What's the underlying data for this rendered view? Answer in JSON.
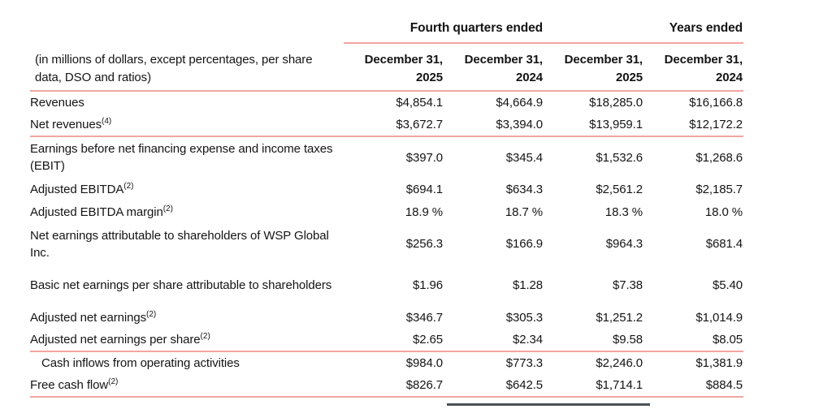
{
  "table": {
    "col_groups": [
      {
        "label": "Fourth quarters ended"
      },
      {
        "label": "Years ended"
      }
    ],
    "corner_note": "(in millions of dollars, except percentages, per share data, DSO and ratios)",
    "columns": [
      {
        "line1": "December 31,",
        "line2": "2025"
      },
      {
        "line1": "December 31,",
        "line2": "2024"
      },
      {
        "line1": "December 31,",
        "line2": "2025"
      },
      {
        "line1": "December 31,",
        "line2": "2024"
      }
    ],
    "rows": [
      {
        "label": "Revenues",
        "sup": "",
        "tall": false,
        "indent": false,
        "rule_below": false,
        "values": [
          "$4,854.1",
          "$4,664.9",
          "$18,285.0",
          "$16,166.8"
        ]
      },
      {
        "label": "Net revenues",
        "sup": "(4)",
        "tall": false,
        "indent": false,
        "rule_below": true,
        "values": [
          "$3,672.7",
          "$3,394.0",
          "$13,959.1",
          "$12,172.2"
        ]
      },
      {
        "label": "Earnings before net financing expense and income taxes (EBIT)",
        "sup": "",
        "tall": true,
        "indent": false,
        "rule_below": false,
        "values": [
          "$397.0",
          "$345.4",
          "$1,532.6",
          "$1,268.6"
        ]
      },
      {
        "label": "Adjusted EBITDA",
        "sup": "(2)",
        "tall": false,
        "indent": false,
        "rule_below": false,
        "values": [
          "$694.1",
          "$634.3",
          "$2,561.2",
          "$2,185.7"
        ]
      },
      {
        "label": "Adjusted EBITDA margin",
        "sup": "(2)",
        "tall": false,
        "indent": false,
        "rule_below": false,
        "values": [
          "18.9 %",
          "18.7 %",
          "18.3 %",
          "18.0 %"
        ]
      },
      {
        "label": "Net earnings attributable to shareholders of WSP Global Inc.",
        "sup": "",
        "tall": true,
        "indent": false,
        "rule_below": false,
        "values": [
          "$256.3",
          "$166.9",
          "$964.3",
          "$681.4"
        ]
      },
      {
        "label": "Basic net earnings per share attributable to shareholders",
        "sup": "",
        "tall": true,
        "indent": false,
        "rule_below": false,
        "values": [
          "$1.96",
          "$1.28",
          "$7.38",
          "$5.40"
        ]
      },
      {
        "label": "Adjusted net earnings",
        "sup": "(2)",
        "tall": false,
        "indent": false,
        "rule_below": false,
        "values": [
          "$346.7",
          "$305.3",
          "$1,251.2",
          "$1,014.9"
        ]
      },
      {
        "label": "Adjusted net earnings per share",
        "sup": "(2)",
        "tall": false,
        "indent": false,
        "rule_below": true,
        "values": [
          "$2.65",
          "$2.34",
          "$9.58",
          "$8.05"
        ]
      },
      {
        "label": "Cash inflows from operating activities",
        "sup": "",
        "tall": false,
        "indent": true,
        "rule_below": false,
        "values": [
          "$984.0",
          "$773.3",
          "$2,246.0",
          "$1,381.9"
        ]
      },
      {
        "label": "Free cash flow",
        "sup": "(2)",
        "tall": false,
        "indent": false,
        "rule_below": false,
        "values": [
          "$826.7",
          "$642.5",
          "$1,714.1",
          "$884.5"
        ]
      }
    ],
    "colors": {
      "rule_pink": "#f2a5a1",
      "dark_segment": "#4d5154",
      "text": "#141414"
    }
  }
}
